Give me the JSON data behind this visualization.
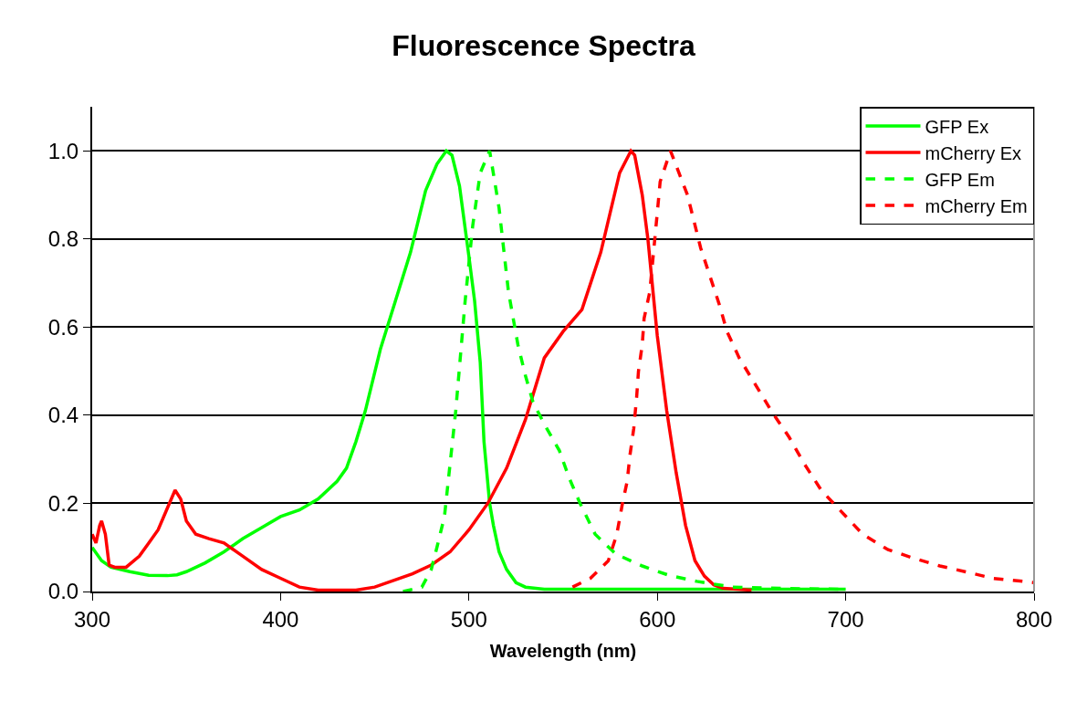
{
  "chart_data": {
    "type": "line",
    "title": "Fluorescence Spectra",
    "xlabel": "Wavelength (nm)",
    "xlim": [
      300,
      800
    ],
    "xticks": [
      300,
      400,
      500,
      600,
      700,
      800
    ],
    "ylim": [
      0,
      1.1
    ],
    "yticks": [
      {
        "value": 0,
        "label": "0.0"
      },
      {
        "value": 0.2,
        "label": "0.2"
      },
      {
        "value": 0.4,
        "label": "0.4"
      },
      {
        "value": 0.6,
        "label": "0.6"
      },
      {
        "value": 0.8,
        "label": "0.8"
      },
      {
        "value": 1,
        "label": "1.0"
      }
    ],
    "grid": "y",
    "legend": "top right",
    "marker": "none",
    "series": [
      {
        "name": "GFP Ex",
        "color": "#00ff00",
        "line_style": "solid",
        "x": [
          300,
          305,
          310,
          320,
          330,
          340,
          345,
          350,
          360,
          370,
          380,
          390,
          400,
          410,
          420,
          430,
          435,
          440,
          445,
          453,
          461,
          469,
          477,
          483,
          488,
          491,
          495,
          500,
          503,
          506,
          508,
          511,
          513,
          516,
          520,
          525,
          530,
          540,
          560,
          600,
          650,
          700
        ],
        "values": [
          0.1,
          0.07,
          0.055,
          0.045,
          0.037,
          0.036,
          0.038,
          0.045,
          0.065,
          0.09,
          0.12,
          0.145,
          0.17,
          0.185,
          0.21,
          0.25,
          0.28,
          0.34,
          0.41,
          0.55,
          0.66,
          0.77,
          0.91,
          0.97,
          1.0,
          0.99,
          0.92,
          0.76,
          0.66,
          0.52,
          0.34,
          0.2,
          0.15,
          0.09,
          0.05,
          0.02,
          0.01,
          0.005,
          0.005,
          0.005,
          0.005,
          0.005
        ]
      },
      {
        "name": "mCherry Ex",
        "color": "#ff0000",
        "line_style": "solid",
        "x": [
          300,
          302,
          304,
          305,
          307,
          309,
          312,
          318,
          325,
          330,
          335,
          340,
          344,
          347,
          350,
          355,
          362,
          370,
          380,
          390,
          400,
          410,
          420,
          440,
          450,
          460,
          470,
          480,
          490,
          500,
          510,
          520,
          530,
          540,
          550,
          560,
          570,
          580,
          586,
          588,
          592,
          595,
          600,
          605,
          610,
          615,
          620,
          625,
          630,
          635,
          650
        ],
        "values": [
          0.13,
          0.11,
          0.15,
          0.16,
          0.13,
          0.06,
          0.055,
          0.055,
          0.08,
          0.11,
          0.14,
          0.19,
          0.23,
          0.21,
          0.16,
          0.13,
          0.12,
          0.11,
          0.08,
          0.05,
          0.03,
          0.01,
          0.003,
          0.003,
          0.01,
          0.025,
          0.04,
          0.06,
          0.09,
          0.14,
          0.2,
          0.28,
          0.39,
          0.53,
          0.59,
          0.64,
          0.77,
          0.95,
          1.0,
          0.99,
          0.9,
          0.8,
          0.58,
          0.41,
          0.27,
          0.15,
          0.07,
          0.035,
          0.015,
          0.007,
          0.003
        ]
      },
      {
        "name": "GFP Em",
        "color": "#00ff00",
        "line_style": "dashed",
        "x": [
          465,
          475,
          480,
          483,
          487,
          493,
          498,
          502,
          506,
          511,
          516,
          521,
          526,
          530,
          534,
          540,
          548,
          553,
          559,
          567,
          578,
          592,
          606,
          621,
          640,
          660,
          680,
          700
        ],
        "values": [
          0,
          0.01,
          0.05,
          0.1,
          0.17,
          0.41,
          0.66,
          0.83,
          0.95,
          1.0,
          0.87,
          0.68,
          0.56,
          0.49,
          0.43,
          0.38,
          0.32,
          0.26,
          0.2,
          0.13,
          0.085,
          0.058,
          0.037,
          0.023,
          0.01,
          0.008,
          0.006,
          0.005
        ]
      },
      {
        "name": "mCherry Em",
        "color": "#ff0000",
        "line_style": "dashed",
        "x": [
          555,
          564.5,
          574,
          578.5,
          581.5,
          584,
          585.5,
          587.5,
          589,
          590,
          592,
          593,
          596,
          600,
          601.5,
          607,
          616,
          623,
          633,
          637,
          643.5,
          652,
          660.5,
          670,
          678,
          687,
          698,
          709,
          722.5,
          736.5,
          750,
          764.5,
          778,
          794,
          800
        ],
        "values": [
          0.01,
          0.03,
          0.07,
          0.13,
          0.2,
          0.25,
          0.31,
          0.37,
          0.44,
          0.5,
          0.56,
          0.62,
          0.68,
          0.86,
          0.93,
          1.0,
          0.9,
          0.78,
          0.65,
          0.59,
          0.53,
          0.47,
          0.41,
          0.35,
          0.29,
          0.23,
          0.18,
          0.13,
          0.095,
          0.075,
          0.058,
          0.044,
          0.03,
          0.023,
          0.02
        ]
      }
    ]
  }
}
